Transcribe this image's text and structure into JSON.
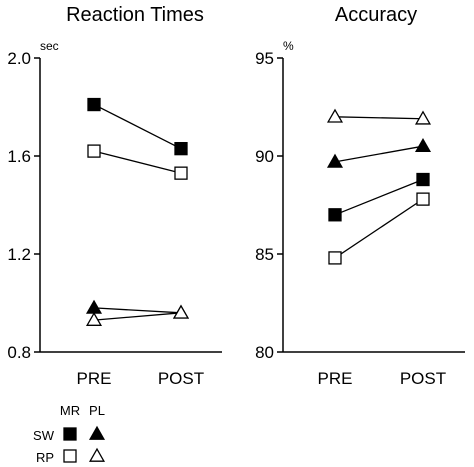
{
  "chart_data": [
    {
      "type": "line",
      "title": "Reaction Times",
      "unit": "sec",
      "categories": [
        "PRE",
        "POST"
      ],
      "ylim": [
        0.8,
        2.0
      ],
      "yticks": [
        "0.8",
        "1.2",
        "1.6",
        "2.0"
      ],
      "tick_values": [
        0.8,
        1.2,
        1.6,
        2.0
      ],
      "grid": false,
      "series": [
        {
          "name": "SW MR",
          "marker": "square-filled",
          "values": [
            1.81,
            1.63
          ]
        },
        {
          "name": "RP MR",
          "marker": "square-open",
          "values": [
            1.62,
            1.53
          ]
        },
        {
          "name": "SW PL",
          "marker": "triangle-filled",
          "values": [
            0.98,
            0.96
          ]
        },
        {
          "name": "RP PL",
          "marker": "triangle-open",
          "values": [
            0.93,
            0.96
          ]
        }
      ]
    },
    {
      "type": "line",
      "title": "Accuracy",
      "unit": "%",
      "categories": [
        "PRE",
        "POST"
      ],
      "ylim": [
        80,
        95
      ],
      "yticks": [
        "80",
        "85",
        "90",
        "95"
      ],
      "tick_values": [
        80,
        85,
        90,
        95
      ],
      "grid": false,
      "series": [
        {
          "name": "RP PL",
          "marker": "triangle-open",
          "values": [
            92.0,
            91.9
          ]
        },
        {
          "name": "SW PL",
          "marker": "triangle-filled",
          "values": [
            89.7,
            90.5
          ]
        },
        {
          "name": "SW MR",
          "marker": "square-filled",
          "values": [
            87.0,
            88.8
          ]
        },
        {
          "name": "RP MR",
          "marker": "square-open",
          "values": [
            84.8,
            87.8
          ]
        }
      ]
    }
  ],
  "legend": {
    "col_headers": [
      "MR",
      "PL"
    ],
    "rows": [
      {
        "label": "SW",
        "markers": [
          "square-filled",
          "triangle-filled"
        ]
      },
      {
        "label": "RP",
        "markers": [
          "square-open",
          "triangle-open"
        ]
      }
    ]
  }
}
